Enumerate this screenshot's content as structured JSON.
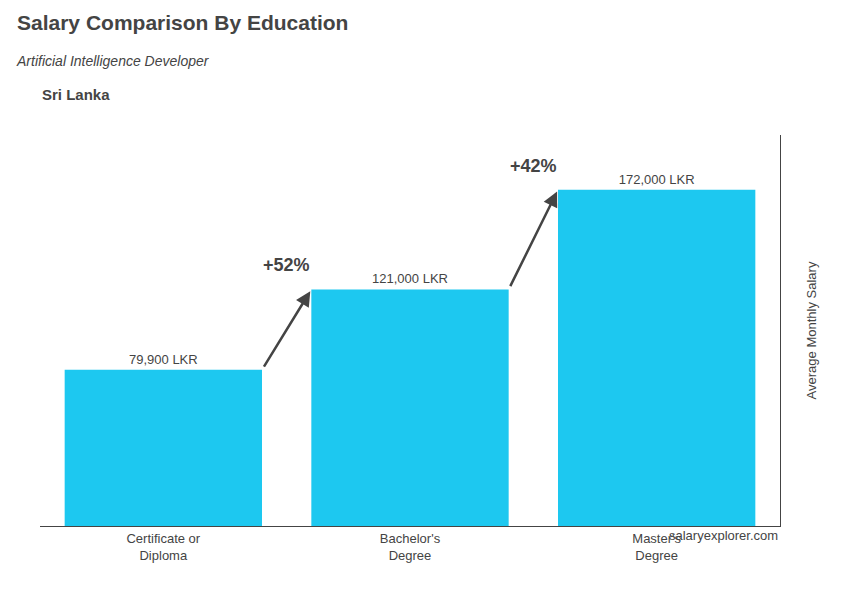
{
  "chart_data": {
    "type": "bar",
    "title": "Salary Comparison By Education",
    "subtitle": "Artificial Intelligence Developer",
    "ylabel": "Average Monthly Salary",
    "categories": [
      "Certificate or\nDiploma",
      "Bachelor's\nDegree",
      "Master's\nDegree"
    ],
    "values": [
      79900,
      121000,
      172000
    ],
    "value_labels": [
      "79,900 LKR",
      "121,000 LKR",
      "172,000 LKR"
    ],
    "data_labels": true,
    "color": "#1DC8F0",
    "ylim": [
      0,
      200000
    ],
    "tick_labels": "x",
    "grid": false,
    "annotations": [
      {
        "text": "Sri Lanka"
      },
      {
        "text": "salaryexplorer.com"
      },
      {
        "text": "+52%",
        "from": "Certificate or\nDiploma",
        "to": "Bachelor's\nDegree"
      },
      {
        "text": "+42%",
        "from": "Bachelor's\nDegree",
        "to": "Master's\nDegree"
      }
    ]
  }
}
